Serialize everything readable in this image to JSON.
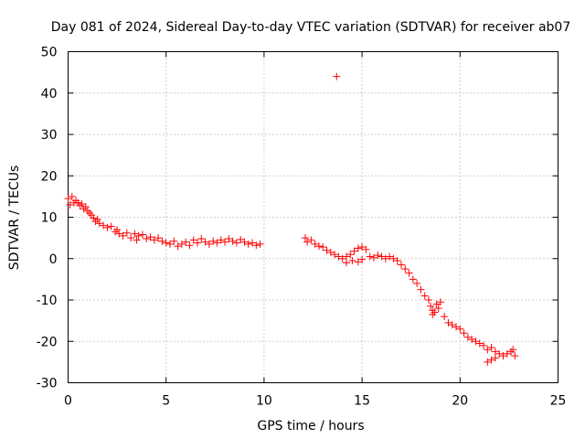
{
  "chart_data": {
    "type": "scatter",
    "title": "Day 081 of 2024, Sidereal Day-to-day VTEC variation (SDTVAR) for receiver ab07",
    "xlabel": "GPS time / hours",
    "ylabel": "SDTVAR / TECUs",
    "xlim": [
      0,
      25
    ],
    "ylim": [
      -30,
      50
    ],
    "xticks": [
      "0",
      "5",
      "10",
      "15",
      "20",
      "25"
    ],
    "yticks": [
      "-30",
      "-20",
      "-10",
      "0",
      "10",
      "20",
      "30",
      "40",
      "50"
    ],
    "grid": true,
    "marker": "+",
    "color": "#ff0000",
    "series": [
      {
        "name": "SDTVAR",
        "points": [
          [
            0.0,
            14.5
          ],
          [
            0.1,
            13.0
          ],
          [
            0.2,
            15.0
          ],
          [
            0.3,
            13.5
          ],
          [
            0.4,
            14.0
          ],
          [
            0.5,
            13.5
          ],
          [
            0.6,
            12.8
          ],
          [
            0.7,
            13.2
          ],
          [
            0.8,
            12.0
          ],
          [
            0.9,
            12.5
          ],
          [
            1.0,
            11.5
          ],
          [
            1.1,
            11.0
          ],
          [
            1.2,
            10.5
          ],
          [
            1.3,
            9.8
          ],
          [
            1.4,
            9.0
          ],
          [
            1.5,
            9.5
          ],
          [
            1.6,
            8.5
          ],
          [
            1.8,
            8.0
          ],
          [
            2.0,
            7.5
          ],
          [
            2.2,
            7.8
          ],
          [
            2.4,
            6.5
          ],
          [
            2.5,
            7.0
          ],
          [
            2.6,
            6.0
          ],
          [
            2.8,
            5.5
          ],
          [
            3.0,
            6.2
          ],
          [
            3.2,
            5.0
          ],
          [
            3.4,
            6.0
          ],
          [
            3.5,
            4.5
          ],
          [
            3.6,
            5.5
          ],
          [
            3.8,
            5.8
          ],
          [
            4.0,
            4.8
          ],
          [
            4.2,
            5.2
          ],
          [
            4.4,
            4.5
          ],
          [
            4.6,
            5.0
          ],
          [
            4.8,
            4.2
          ],
          [
            5.0,
            3.8
          ],
          [
            5.2,
            3.5
          ],
          [
            5.4,
            4.2
          ],
          [
            5.6,
            3.0
          ],
          [
            5.8,
            3.5
          ],
          [
            6.0,
            4.0
          ],
          [
            6.2,
            3.2
          ],
          [
            6.4,
            4.5
          ],
          [
            6.6,
            3.8
          ],
          [
            6.8,
            4.8
          ],
          [
            7.0,
            4.0
          ],
          [
            7.2,
            3.5
          ],
          [
            7.4,
            4.2
          ],
          [
            7.6,
            3.8
          ],
          [
            7.8,
            4.5
          ],
          [
            8.0,
            4.0
          ],
          [
            8.2,
            4.8
          ],
          [
            8.4,
            4.2
          ],
          [
            8.6,
            3.8
          ],
          [
            8.8,
            4.6
          ],
          [
            9.0,
            4.0
          ],
          [
            9.2,
            3.5
          ],
          [
            9.4,
            3.8
          ],
          [
            9.6,
            3.2
          ],
          [
            9.8,
            3.5
          ],
          [
            13.7,
            44.0
          ],
          [
            12.1,
            5.0
          ],
          [
            12.2,
            4.0
          ],
          [
            12.4,
            4.5
          ],
          [
            12.6,
            3.5
          ],
          [
            12.8,
            3.0
          ],
          [
            13.0,
            2.8
          ],
          [
            13.2,
            2.0
          ],
          [
            13.4,
            1.5
          ],
          [
            13.6,
            1.0
          ],
          [
            13.8,
            0.5
          ],
          [
            14.0,
            0.0
          ],
          [
            14.2,
            0.5
          ],
          [
            14.4,
            1.0
          ],
          [
            14.6,
            1.8
          ],
          [
            14.8,
            2.5
          ],
          [
            15.0,
            2.8
          ],
          [
            15.2,
            2.2
          ],
          [
            14.2,
            -1.0
          ],
          [
            14.5,
            -0.5
          ],
          [
            14.8,
            -0.8
          ],
          [
            15.0,
            -0.2
          ],
          [
            15.4,
            0.5
          ],
          [
            15.6,
            0.2
          ],
          [
            15.8,
            0.8
          ],
          [
            16.0,
            0.5
          ],
          [
            16.2,
            0.0
          ],
          [
            16.4,
            0.5
          ],
          [
            16.6,
            0.0
          ],
          [
            16.8,
            -0.5
          ],
          [
            17.0,
            -1.5
          ],
          [
            17.2,
            -2.5
          ],
          [
            17.4,
            -3.5
          ],
          [
            17.6,
            -5.0
          ],
          [
            17.8,
            -6.0
          ],
          [
            18.0,
            -7.5
          ],
          [
            18.2,
            -9.0
          ],
          [
            18.4,
            -10.0
          ],
          [
            18.5,
            -11.5
          ],
          [
            18.6,
            -12.5
          ],
          [
            18.7,
            -13.0
          ],
          [
            18.8,
            -11.0
          ],
          [
            18.9,
            -12.0
          ],
          [
            19.0,
            -10.5
          ],
          [
            18.6,
            -13.5
          ],
          [
            19.2,
            -14.0
          ],
          [
            19.4,
            -15.5
          ],
          [
            19.6,
            -16.0
          ],
          [
            19.8,
            -16.5
          ],
          [
            20.0,
            -17.0
          ],
          [
            20.2,
            -18.0
          ],
          [
            20.4,
            -19.0
          ],
          [
            20.6,
            -19.5
          ],
          [
            20.8,
            -20.0
          ],
          [
            21.0,
            -20.5
          ],
          [
            21.2,
            -21.0
          ],
          [
            21.4,
            -22.0
          ],
          [
            21.6,
            -21.5
          ],
          [
            21.8,
            -22.5
          ],
          [
            22.0,
            -23.0
          ],
          [
            21.4,
            -25.0
          ],
          [
            21.6,
            -24.5
          ],
          [
            21.8,
            -24.0
          ],
          [
            22.2,
            -23.5
          ],
          [
            22.4,
            -23.0
          ],
          [
            22.6,
            -22.5
          ],
          [
            22.8,
            -23.5
          ],
          [
            22.7,
            -22.0
          ]
        ]
      }
    ]
  }
}
